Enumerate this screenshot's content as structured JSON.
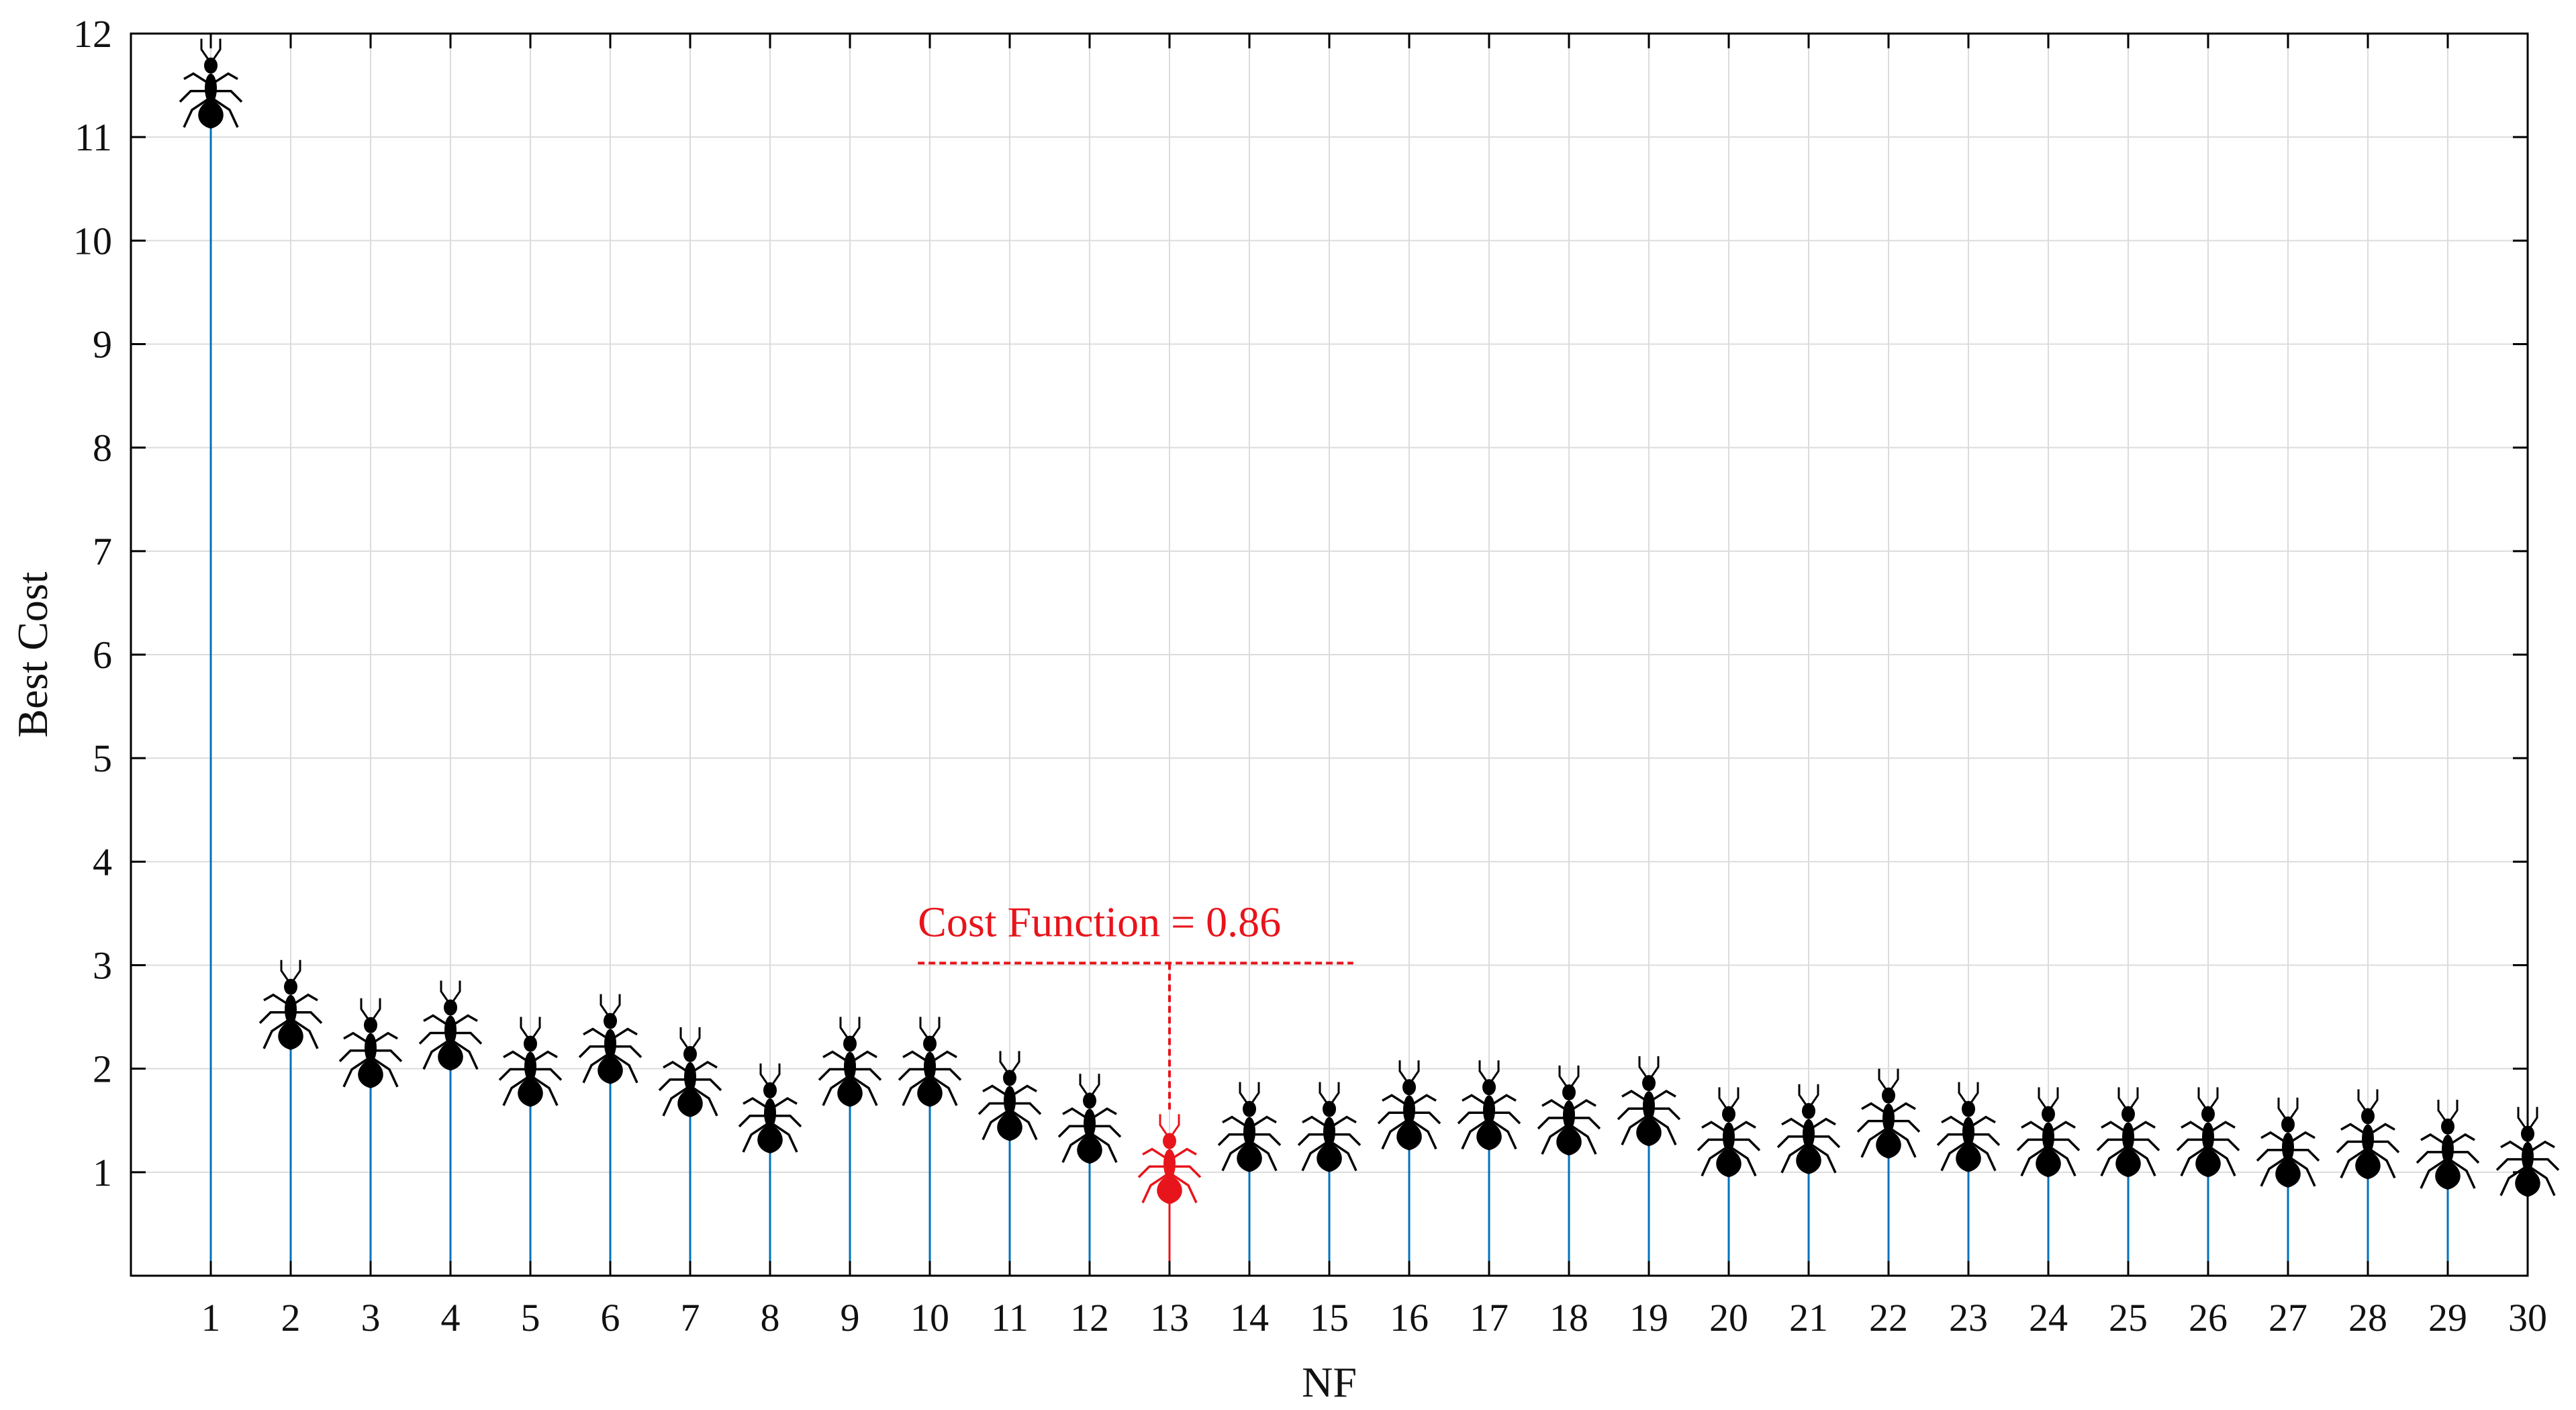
{
  "chart_data": {
    "type": "stem",
    "xlabel": "NF",
    "ylabel": "Best Cost",
    "x": [
      1,
      2,
      3,
      4,
      5,
      6,
      7,
      8,
      9,
      10,
      11,
      12,
      13,
      14,
      15,
      16,
      17,
      18,
      19,
      20,
      21,
      22,
      23,
      24,
      25,
      26,
      27,
      28,
      29,
      30
    ],
    "x_ticks": [
      "1",
      "2",
      "3",
      "4",
      "5",
      "6",
      "7",
      "8",
      "9",
      "10",
      "11",
      "12",
      "13",
      "14",
      "15",
      "16",
      "17",
      "18",
      "19",
      "20",
      "21",
      "22",
      "23",
      "24",
      "25",
      "26",
      "27",
      "28",
      "29",
      "30"
    ],
    "values": [
      11.25,
      2.35,
      1.98,
      2.15,
      1.8,
      2.02,
      1.7,
      1.35,
      1.8,
      1.8,
      1.47,
      1.25,
      0.86,
      1.17,
      1.17,
      1.38,
      1.38,
      1.33,
      1.42,
      1.12,
      1.15,
      1.3,
      1.17,
      1.12,
      1.12,
      1.12,
      1.02,
      1.1,
      1.0,
      0.93
    ],
    "y_ticks": [
      "1",
      "2",
      "3",
      "4",
      "5",
      "6",
      "7",
      "8",
      "9",
      "10",
      "11",
      "12"
    ],
    "xlim": [
      0,
      30
    ],
    "ylim": [
      0,
      12
    ],
    "grid": true,
    "marker": "ant-icon",
    "colors": {
      "stem": "#0072BD",
      "marker": "#000000",
      "highlight": "#E8141B",
      "grid": "#dcdcdc",
      "axis": "#000000"
    },
    "annotation": {
      "text": "Cost Function = 0.86",
      "target_x": 13,
      "target_y": 0.86,
      "line_y": 3.02,
      "line_x_start": 9.85,
      "line_x_end": 15.3
    }
  }
}
